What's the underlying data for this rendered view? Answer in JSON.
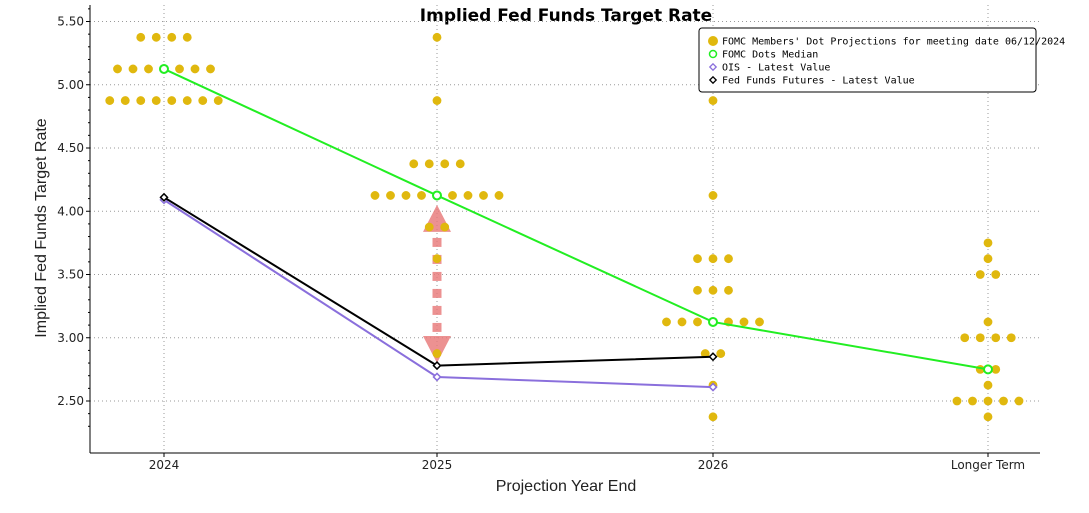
{
  "chart_data": {
    "type": "scatter",
    "title": "Implied Fed Funds Target Rate",
    "xlabel": "Projection Year End",
    "ylabel": "Implied Fed Funds Target Rate",
    "categories": [
      "2024",
      "2025",
      "2026",
      "Longer Term"
    ],
    "y_ticks": [
      "2.50",
      "3.00",
      "3.50",
      "4.00",
      "4.50",
      "5.00",
      "5.50"
    ],
    "ylim": [
      2.1,
      5.6
    ],
    "grid": true,
    "legend_position": "top-right",
    "legend": [
      {
        "label": "FOMC Members' Dot Projections for meeting date 06/12/2024",
        "marker": "dot",
        "color": "#e0b80e"
      },
      {
        "label": "FOMC Dots Median",
        "marker": "circle",
        "color": "#22ee22"
      },
      {
        "label": "OIS - Latest Value",
        "marker": "diamond",
        "color": "#8a6fdc"
      },
      {
        "label": "Fed Funds Futures - Latest Value",
        "marker": "diamond",
        "color": "#000000"
      }
    ],
    "dot_projections": [
      {
        "category": "2024",
        "levels": [
          {
            "y": 5.375,
            "count": 4
          },
          {
            "y": 5.125,
            "count": 7
          },
          {
            "y": 4.875,
            "count": 8
          }
        ]
      },
      {
        "category": "2025",
        "levels": [
          {
            "y": 5.375,
            "count": 1
          },
          {
            "y": 4.875,
            "count": 1
          },
          {
            "y": 4.375,
            "count": 4
          },
          {
            "y": 4.125,
            "count": 9
          },
          {
            "y": 3.875,
            "count": 2
          },
          {
            "y": 3.625,
            "count": 1
          },
          {
            "y": 2.875,
            "count": 1
          }
        ]
      },
      {
        "category": "2026",
        "levels": [
          {
            "y": 4.875,
            "count": 1
          },
          {
            "y": 4.125,
            "count": 1
          },
          {
            "y": 3.625,
            "count": 3
          },
          {
            "y": 3.375,
            "count": 3
          },
          {
            "y": 3.125,
            "count": 7
          },
          {
            "y": 2.875,
            "count": 2
          },
          {
            "y": 2.625,
            "count": 1
          },
          {
            "y": 2.375,
            "count": 1
          }
        ]
      },
      {
        "category": "Longer Term",
        "levels": [
          {
            "y": 3.75,
            "count": 1
          },
          {
            "y": 3.625,
            "count": 1
          },
          {
            "y": 3.5,
            "count": 2
          },
          {
            "y": 3.125,
            "count": 1
          },
          {
            "y": 3.0,
            "count": 4
          },
          {
            "y": 2.75,
            "count": 2
          },
          {
            "y": 2.625,
            "count": 1
          },
          {
            "y": 2.5,
            "count": 5
          },
          {
            "y": 2.375,
            "count": 1
          }
        ]
      }
    ],
    "series": [
      {
        "name": "FOMC Dots Median",
        "color": "#22ee22",
        "x": [
          "2024",
          "2025",
          "2026",
          "Longer Term"
        ],
        "values": [
          5.125,
          4.125,
          3.125,
          2.75
        ]
      },
      {
        "name": "OIS - Latest Value",
        "color": "#8a6fdc",
        "x": [
          "2024",
          "2025",
          "2026"
        ],
        "values": [
          4.09,
          2.69,
          2.61
        ]
      },
      {
        "name": "Fed Funds Futures - Latest Value",
        "color": "#000000",
        "x": [
          "2024",
          "2025",
          "2026"
        ],
        "values": [
          4.11,
          2.78,
          2.85
        ]
      }
    ],
    "annotations": [
      {
        "type": "double-arrow",
        "category": "2025",
        "from": 4.05,
        "to": 2.8,
        "color": "#e87a7a"
      }
    ]
  }
}
